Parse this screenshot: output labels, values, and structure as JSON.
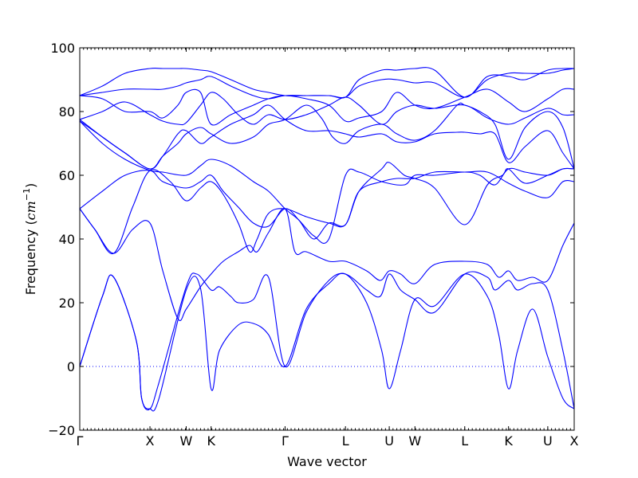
{
  "chart_data": {
    "type": "line",
    "xlabel": "Wave vector",
    "ylabel_text": "Frequency (",
    "ylabel_unit": "cm",
    "ylabel_exp": "−1",
    "ylabel_close": ")",
    "ylim": [
      -20,
      100
    ],
    "yticks": [
      -20,
      0,
      20,
      40,
      60,
      80,
      100
    ],
    "xlim": [
      0,
      6.55
    ],
    "kpoints": [
      {
        "label": "Γ",
        "x": 0.0
      },
      {
        "label": "X",
        "x": 0.93
      },
      {
        "label": "W",
        "x": 1.41
      },
      {
        "label": "K",
        "x": 1.74
      },
      {
        "label": "Γ",
        "x": 2.72
      },
      {
        "label": "L",
        "x": 3.52
      },
      {
        "label": "U",
        "x": 4.1
      },
      {
        "label": "W",
        "x": 4.44
      },
      {
        "label": "L",
        "x": 5.1
      },
      {
        "label": "K",
        "x": 5.68
      },
      {
        "label": "U",
        "x": 6.2
      },
      {
        "label": "X",
        "x": 6.55
      }
    ],
    "zero_line": 0,
    "grid": false,
    "series_color": "#0000ff",
    "series": [
      {
        "x": [
          0,
          0.3,
          0.45,
          0.75,
          0.82,
          0.93,
          1.05,
          1.41,
          1.6,
          1.74,
          1.85,
          2.1,
          2.3,
          2.5,
          2.72,
          3.0,
          3.3,
          3.52,
          3.8,
          4.0,
          4.1,
          4.25,
          4.44,
          4.7,
          5.1,
          5.4,
          5.55,
          5.68,
          5.8,
          6.0,
          6.2,
          6.4,
          6.55
        ],
        "y": [
          0,
          22,
          28,
          8,
          -10,
          -13.3,
          -10,
          24,
          24.5,
          -7,
          5,
          13,
          13.5,
          10,
          0,
          18,
          26,
          29,
          20,
          5,
          -7,
          5,
          21,
          19,
          29,
          22,
          10,
          -7,
          5,
          18,
          3,
          -10,
          -13.3
        ]
      },
      {
        "x": [
          0,
          0.3,
          0.45,
          0.75,
          0.82,
          0.93,
          1.05,
          1.41,
          1.55,
          1.74,
          1.85,
          2.0,
          2.1,
          2.3,
          2.5,
          2.72,
          3.0,
          3.3,
          3.52,
          3.8,
          3.98,
          4.1,
          4.25,
          4.44,
          4.7,
          5.1,
          5.4,
          5.5,
          5.68,
          5.8,
          6.0,
          6.2,
          6.4,
          6.55
        ],
        "y": [
          0,
          22,
          28,
          8,
          -10,
          -13.3,
          -5,
          25,
          29,
          24,
          25,
          22,
          20,
          21,
          28,
          0,
          17,
          27,
          29,
          24,
          22,
          29,
          24,
          21,
          17,
          29,
          28,
          24,
          27,
          24,
          26,
          24,
          5,
          -13.3
        ]
      },
      {
        "x": [
          0,
          0.2,
          0.45,
          0.7,
          0.93,
          1.1,
          1.3,
          1.41,
          1.6,
          1.74,
          1.9,
          2.1,
          2.25,
          2.35,
          2.5,
          2.72,
          2.85,
          3.0,
          3.3,
          3.52,
          3.8,
          3.98,
          4.1,
          4.25,
          4.44,
          4.7,
          5.1,
          5.4,
          5.55,
          5.68,
          5.8,
          6.0,
          6.2,
          6.4,
          6.55
        ],
        "y": [
          49.5,
          43,
          35.5,
          43,
          45,
          30,
          15,
          18,
          25,
          29,
          33,
          36,
          38,
          36,
          42,
          49.5,
          36,
          36,
          33,
          33,
          30,
          27,
          30,
          29,
          26,
          32,
          33,
          32,
          28,
          30,
          27,
          28,
          27,
          38,
          45
        ]
      },
      {
        "x": [
          0,
          0.2,
          0.45,
          0.7,
          0.93,
          1.2,
          1.41,
          1.6,
          1.74,
          1.9,
          2.1,
          2.25,
          2.35,
          2.5,
          2.72,
          3.0,
          3.3,
          3.52,
          3.7,
          4.0,
          4.1,
          4.3,
          4.44,
          4.7,
          5.1,
          5.4,
          5.6,
          5.68,
          5.9,
          6.2,
          6.4,
          6.55
        ],
        "y": [
          49.5,
          43,
          35.5,
          50,
          61.5,
          58,
          52,
          56,
          58,
          54,
          45,
          36,
          40,
          48,
          49.5,
          47,
          45,
          44.5,
          55,
          62,
          64,
          60,
          59,
          56,
          44.5,
          57,
          60,
          62,
          57.5,
          60,
          62,
          62
        ]
      },
      {
        "x": [
          0,
          0.3,
          0.6,
          0.93,
          1.1,
          1.41,
          1.6,
          1.74,
          1.9,
          2.1,
          2.3,
          2.5,
          2.72,
          2.9,
          3.1,
          3.3,
          3.52,
          3.7,
          4.0,
          4.2,
          4.44,
          4.7,
          5.1,
          5.4,
          5.68,
          5.9,
          6.2,
          6.4,
          6.55
        ],
        "y": [
          49.5,
          55,
          60,
          61.5,
          58,
          56,
          58,
          60,
          55,
          50,
          45,
          44,
          49.5,
          46,
          40,
          45,
          44.5,
          55,
          58,
          59,
          59,
          61,
          61,
          61,
          57.5,
          55,
          53,
          58,
          58
        ]
      },
      {
        "x": [
          0,
          0.3,
          0.6,
          0.93,
          1.1,
          1.41,
          1.6,
          1.74,
          2.0,
          2.3,
          2.5,
          2.72,
          2.9,
          3.1,
          3.3,
          3.52,
          3.7,
          4.0,
          4.3,
          4.44,
          4.7,
          5.1,
          5.3,
          5.5,
          5.68,
          5.9,
          6.2,
          6.4,
          6.55
        ],
        "y": [
          77,
          70,
          65,
          61.5,
          61,
          60,
          63,
          65,
          63,
          58,
          55,
          49.5,
          46,
          41,
          40,
          60,
          61,
          58,
          57,
          60,
          60,
          61,
          60,
          57,
          62,
          61,
          60,
          62,
          62
        ]
      },
      {
        "x": [
          0,
          0.3,
          0.6,
          0.93,
          1.1,
          1.3,
          1.41,
          1.6,
          1.74,
          2.0,
          2.3,
          2.5,
          2.72,
          3.0,
          3.3,
          3.52,
          3.7,
          4.0,
          4.2,
          4.44,
          4.7,
          5.0,
          5.1,
          5.3,
          5.5,
          5.68,
          5.9,
          6.2,
          6.4,
          6.55
        ],
        "y": [
          77,
          72,
          67,
          62,
          66,
          73,
          74,
          70,
          72,
          76,
          79,
          82,
          77.5,
          74,
          74,
          73,
          72,
          73,
          70.5,
          70.5,
          73,
          73.5,
          73.5,
          73,
          73,
          64,
          69,
          74,
          67,
          62
        ]
      },
      {
        "x": [
          0,
          0.3,
          0.6,
          0.93,
          1.1,
          1.3,
          1.41,
          1.6,
          1.74,
          2.0,
          2.3,
          2.5,
          2.72,
          3.0,
          3.2,
          3.35,
          3.52,
          3.7,
          4.0,
          4.2,
          4.44,
          4.7,
          5.0,
          5.1,
          5.3,
          5.5,
          5.68,
          5.9,
          6.2,
          6.4,
          6.55
        ],
        "y": [
          77.5,
          72,
          67,
          62,
          66,
          70,
          73,
          75,
          73,
          70,
          72,
          76,
          77.5,
          82,
          78,
          72,
          70,
          74,
          76,
          73,
          71,
          74,
          82,
          82,
          80,
          76,
          65,
          75,
          80,
          75,
          62
        ]
      },
      {
        "x": [
          0,
          0.3,
          0.6,
          0.93,
          1.1,
          1.3,
          1.41,
          1.6,
          1.74,
          1.9,
          2.1,
          2.3,
          2.5,
          2.72,
          3.0,
          3.3,
          3.52,
          3.7,
          4.0,
          4.2,
          4.44,
          4.7,
          5.1,
          5.4,
          5.68,
          5.9,
          6.2,
          6.4,
          6.55
        ],
        "y": [
          77.5,
          80,
          83,
          79,
          77,
          76,
          76.5,
          82,
          86,
          84,
          79,
          76,
          79,
          77.5,
          79,
          82,
          84.5,
          82,
          76,
          80,
          82,
          81,
          82,
          78,
          76,
          78,
          81,
          79,
          79
        ]
      },
      {
        "x": [
          0,
          0.3,
          0.6,
          0.93,
          1.1,
          1.3,
          1.41,
          1.6,
          1.74,
          2.0,
          2.3,
          2.5,
          2.72,
          3.0,
          3.3,
          3.52,
          3.7,
          4.0,
          4.2,
          4.44,
          4.7,
          5.1,
          5.4,
          5.68,
          5.9,
          6.2,
          6.4,
          6.55
        ],
        "y": [
          85,
          84,
          80,
          80,
          78,
          82,
          86,
          86,
          76,
          79,
          82,
          84,
          85,
          84,
          82,
          77,
          78,
          80,
          86,
          82,
          81,
          84.5,
          87,
          83,
          80,
          84,
          87,
          87
        ]
      },
      {
        "x": [
          0,
          0.3,
          0.6,
          0.93,
          1.1,
          1.3,
          1.41,
          1.6,
          1.74,
          2.0,
          2.3,
          2.5,
          2.72,
          3.0,
          3.3,
          3.52,
          3.7,
          4.0,
          4.2,
          4.44,
          4.7,
          5.1,
          5.4,
          5.68,
          5.9,
          6.2,
          6.4,
          6.55
        ],
        "y": [
          85,
          86,
          87,
          87,
          87,
          88,
          89,
          90,
          91,
          88,
          85,
          84,
          85,
          85,
          85,
          84.5,
          88,
          90,
          90,
          89,
          89,
          84.5,
          90,
          92,
          92,
          92,
          93,
          93.5
        ]
      },
      {
        "x": [
          0,
          0.3,
          0.6,
          0.93,
          1.1,
          1.3,
          1.41,
          1.6,
          1.74,
          2.0,
          2.3,
          2.5,
          2.72,
          3.0,
          3.3,
          3.52,
          3.7,
          4.0,
          4.2,
          4.44,
          4.7,
          5.1,
          5.4,
          5.68,
          5.9,
          6.2,
          6.4,
          6.55
        ],
        "y": [
          85,
          88,
          92,
          93.5,
          93.5,
          93.5,
          93.5,
          93,
          92.5,
          90,
          87,
          86,
          85,
          85,
          85,
          84.5,
          90,
          93,
          93,
          93.5,
          93,
          84.5,
          91,
          91,
          90,
          93,
          93.5,
          93.5
        ]
      }
    ]
  }
}
